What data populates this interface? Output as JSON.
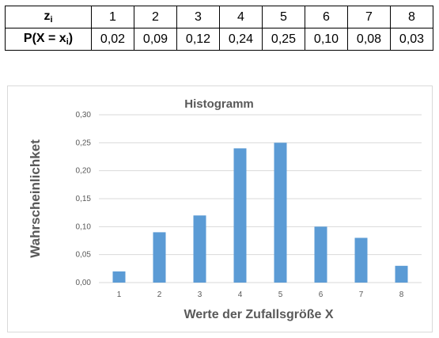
{
  "table": {
    "row1_label": "z",
    "row1_sub": "i",
    "row2_label_pre": "P(X = x",
    "row2_label_sub": "i",
    "row2_label_post": ")",
    "z": [
      "1",
      "2",
      "3",
      "4",
      "5",
      "6",
      "7",
      "8"
    ],
    "p": [
      "0,02",
      "0,09",
      "0,12",
      "0,24",
      "0,25",
      "0,10",
      "0,08",
      "0,03"
    ]
  },
  "chart_data": {
    "type": "bar",
    "title": "Histogramm",
    "xlabel": "Werte der Zufallsgröße X",
    "ylabel": "Wahrscheinlichket",
    "categories": [
      "1",
      "2",
      "3",
      "4",
      "5",
      "6",
      "7",
      "8"
    ],
    "values": [
      0.02,
      0.09,
      0.12,
      0.24,
      0.25,
      0.1,
      0.08,
      0.03
    ],
    "ylim": [
      0,
      0.3
    ],
    "yticks": [
      "0,00",
      "0,05",
      "0,10",
      "0,15",
      "0,20",
      "0,25",
      "0,30"
    ],
    "grid": true,
    "bar_color": "#5B9BD5",
    "grid_color": "#d9d9d9"
  }
}
